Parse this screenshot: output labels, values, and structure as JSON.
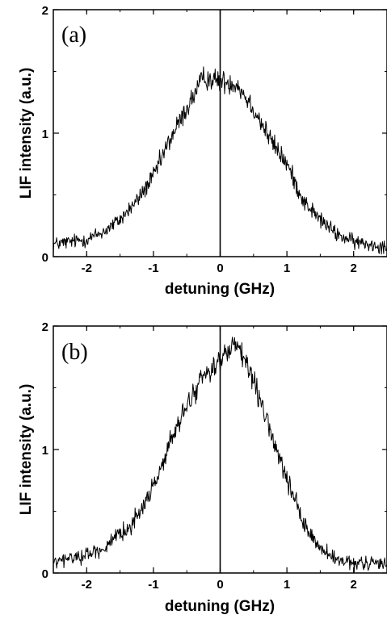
{
  "chart_data": [
    {
      "type": "line",
      "panel_label": "(a)",
      "xlabel": "detuning (GHz)",
      "ylabel": "LIF intensity (a.u.)",
      "xlim": [
        -2.5,
        2.5
      ],
      "ylim": [
        0,
        2
      ],
      "x_ticks": [
        -2,
        -1,
        0,
        1,
        2
      ],
      "x_tick_labels": [
        "-2",
        "-1",
        "0",
        "1",
        "2"
      ],
      "y_ticks": [
        0,
        1,
        2
      ],
      "y_tick_labels": [
        "0",
        "1",
        "2"
      ],
      "vertical_marker_x": 0,
      "grid": false,
      "series": [
        {
          "x": [
            -2.5,
            -2.25,
            -2.0,
            -1.75,
            -1.5,
            -1.25,
            -1.0,
            -0.75,
            -0.5,
            -0.25,
            0.0,
            0.25,
            0.5,
            0.75,
            1.0,
            1.25,
            1.5,
            1.75,
            2.0,
            2.25,
            2.5
          ],
          "y": [
            0.1,
            0.12,
            0.14,
            0.2,
            0.3,
            0.45,
            0.65,
            0.95,
            1.2,
            1.45,
            1.42,
            1.4,
            1.2,
            0.95,
            0.75,
            0.45,
            0.3,
            0.18,
            0.12,
            0.1,
            0.08
          ]
        }
      ]
    },
    {
      "type": "line",
      "panel_label": "(b)",
      "xlabel": "detuning (GHz)",
      "ylabel": "LIF intensity (a.u.)",
      "xlim": [
        -2.5,
        2.5
      ],
      "ylim": [
        0,
        2
      ],
      "x_ticks": [
        -2,
        -1,
        0,
        1,
        2
      ],
      "x_tick_labels": [
        "-2",
        "-1",
        "0",
        "1",
        "2"
      ],
      "y_ticks": [
        0,
        1,
        2
      ],
      "y_tick_labels": [
        "0",
        "1",
        "2"
      ],
      "vertical_marker_x": 0,
      "grid": false,
      "series": [
        {
          "x": [
            -2.5,
            -2.25,
            -2.0,
            -1.75,
            -1.5,
            -1.25,
            -1.0,
            -0.75,
            -0.5,
            -0.25,
            0.0,
            0.25,
            0.5,
            0.75,
            1.0,
            1.25,
            1.5,
            1.75,
            2.0,
            2.25,
            2.5
          ],
          "y": [
            0.08,
            0.12,
            0.15,
            0.2,
            0.3,
            0.45,
            0.7,
            1.05,
            1.35,
            1.6,
            1.72,
            1.85,
            1.55,
            1.15,
            0.75,
            0.4,
            0.2,
            0.1,
            0.07,
            0.08,
            0.08
          ]
        }
      ]
    }
  ]
}
